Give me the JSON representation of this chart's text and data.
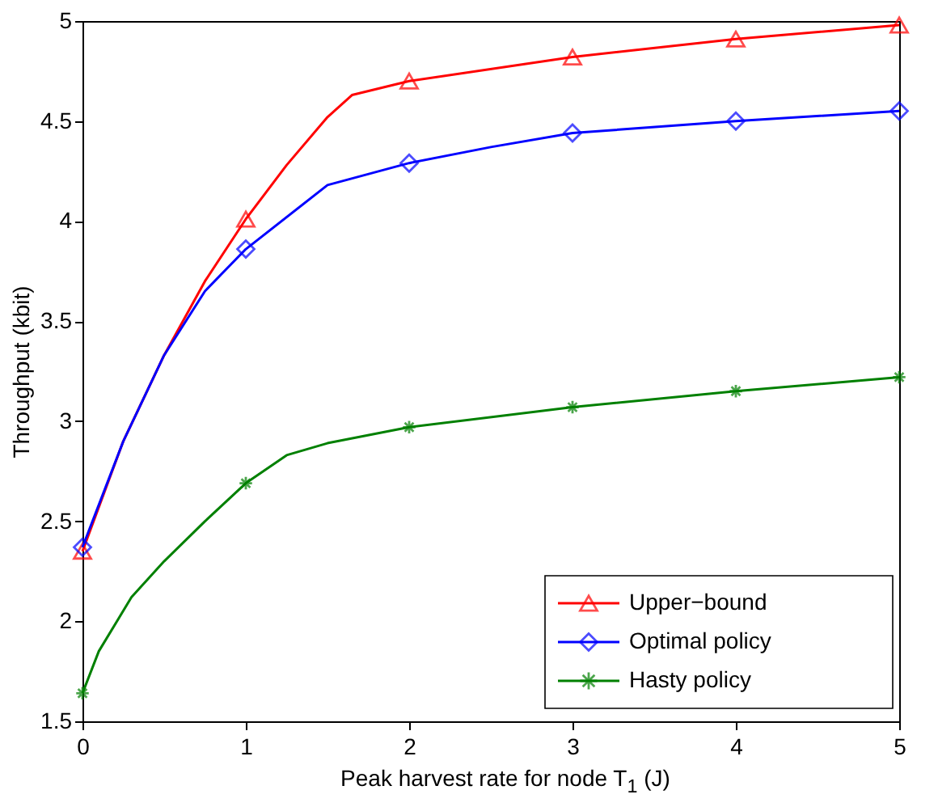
{
  "chart_data": {
    "type": "line",
    "xlabel": "Peak harvest rate for node T$_{1}$ (J)",
    "ylabel": "Throughput (kbit)",
    "xlim": [
      0,
      5
    ],
    "xticks": [
      0,
      1,
      2,
      3,
      4,
      5
    ],
    "ylim": [
      1.5,
      5
    ],
    "yticks": [
      1.5,
      2,
      2.5,
      3,
      3.5,
      4,
      4.5,
      5
    ],
    "grid": false,
    "legend": "bottom right",
    "series": [
      {
        "name": "Upper−bound",
        "color": "#ff0000",
        "type": "line",
        "x": [
          0,
          0.25,
          0.5,
          0.75,
          1,
          1.25,
          1.5,
          1.65,
          2,
          3,
          4,
          5
        ],
        "values": [
          2.35,
          2.9,
          3.33,
          3.7,
          4.01,
          4.28,
          4.52,
          4.63,
          4.7,
          4.82,
          4.91,
          4.98
        ]
      },
      {
        "color": "#ff0000",
        "type": "scatter",
        "marker": "triangle",
        "x": [
          0,
          1,
          2,
          3,
          4,
          5
        ],
        "values": [
          2.35,
          4.01,
          4.7,
          4.82,
          4.91,
          4.98
        ]
      },
      {
        "name": "Optimal policy",
        "color": "#0000ff",
        "type": "line",
        "x": [
          0,
          0.25,
          0.5,
          0.75,
          1,
          1.5,
          2,
          2.5,
          3,
          4,
          5
        ],
        "values": [
          2.37,
          2.9,
          3.33,
          3.65,
          3.86,
          4.18,
          4.29,
          4.37,
          4.44,
          4.5,
          4.55
        ]
      },
      {
        "color": "#0000ff",
        "type": "scatter",
        "marker": "diamond",
        "x": [
          0,
          1,
          2,
          3,
          4,
          5
        ],
        "values": [
          2.37,
          3.86,
          4.29,
          4.44,
          4.5,
          4.55
        ]
      },
      {
        "name": "Hasty policy",
        "color": "#008000",
        "type": "line",
        "x": [
          0,
          0.1,
          0.3,
          0.5,
          0.75,
          1,
          1.25,
          1.5,
          2,
          3,
          4,
          5
        ],
        "values": [
          1.64,
          1.85,
          2.12,
          2.3,
          2.5,
          2.69,
          2.83,
          2.89,
          2.97,
          3.07,
          3.15,
          3.22
        ]
      },
      {
        "color": "#008000",
        "type": "scatter",
        "marker": "cross",
        "x": [
          0,
          1,
          2,
          3,
          4,
          5
        ],
        "values": [
          1.64,
          2.69,
          2.97,
          3.07,
          3.15,
          3.22
        ]
      }
    ]
  }
}
